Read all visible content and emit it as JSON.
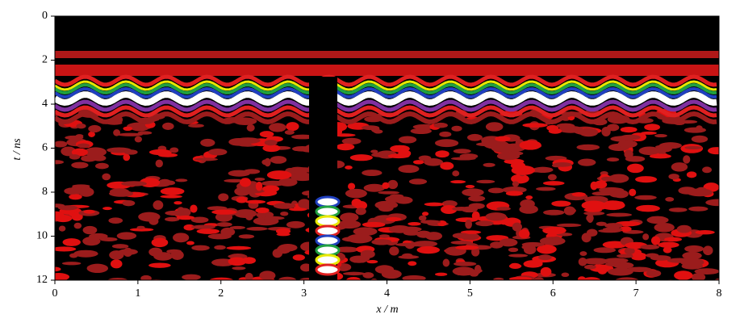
{
  "chart_data": {
    "type": "radargram",
    "x_label": "x / m",
    "y_label": "t / ns",
    "xlim": [
      0,
      8
    ],
    "xticks": [
      0,
      1,
      2,
      3,
      4,
      5,
      6,
      7,
      8
    ],
    "ylim": [
      0,
      12
    ],
    "yticks": [
      0,
      2,
      4,
      6,
      8,
      10,
      12
    ],
    "y_inverted": true
  }
}
